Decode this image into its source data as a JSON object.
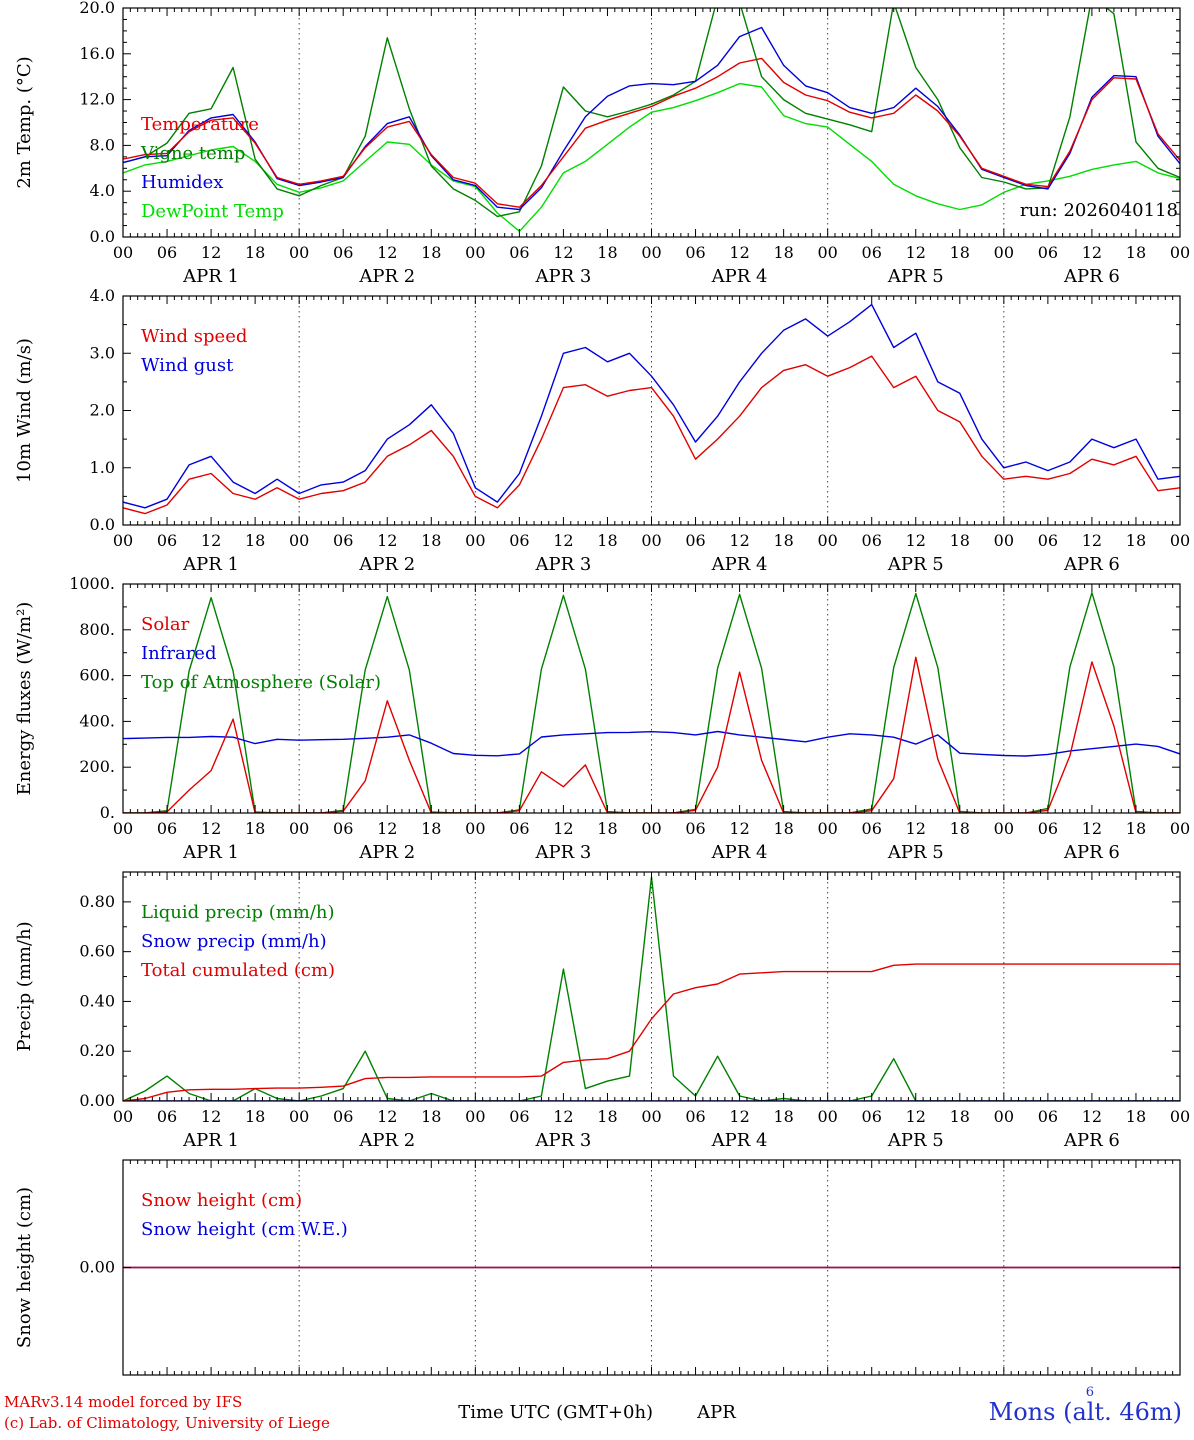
{
  "run_label": "run: 2026040118",
  "footer": {
    "credit_line1": "MARv3.14 model forced by IFS",
    "credit_line2": "(c) Lab. of Climatology, University of Liege",
    "credit_color": "#e00000",
    "xaxis_title": "Time UTC (GMT+0h)",
    "month_label": "APR",
    "station_label": "Mons (alt. 46m)",
    "station_superscript": "6",
    "station_color": "#2233cc"
  },
  "time_axis": {
    "hours_start": 0,
    "hours_end": 144,
    "step_hours": 3,
    "major_tick_every_hours": 6,
    "tick_labels": [
      "00",
      "06",
      "12",
      "18"
    ],
    "day_labels": [
      "APR  1",
      "APR  2",
      "APR  3",
      "APR  4",
      "APR  5",
      "APR  6"
    ],
    "day_boundaries_hours": [
      24,
      48,
      72,
      96,
      120
    ]
  },
  "chart_data": [
    {
      "type": "line",
      "ylabel": "2m Temp. (°C)",
      "ylim": [
        0,
        20
      ],
      "yticks": [
        0,
        4,
        8,
        12,
        16,
        20
      ],
      "ytick_labels": [
        "0.0",
        "4.0",
        "8.0",
        "12.0",
        "16.0",
        "20.0"
      ],
      "yminor": 1,
      "draw_order": [
        3,
        1,
        2,
        0
      ],
      "series": [
        {
          "name": "Temperature",
          "color": "#e00000",
          "values": [
            6.8,
            7.2,
            7.3,
            9.2,
            10.2,
            10.4,
            8.2,
            5.2,
            4.6,
            4.9,
            5.3,
            7.8,
            9.6,
            10.1,
            7.2,
            5.2,
            4.7,
            2.9,
            2.6,
            4.5,
            7.0,
            9.5,
            10.2,
            10.8,
            11.4,
            12.3,
            13.0,
            14.0,
            15.2,
            15.6,
            13.5,
            12.4,
            11.9,
            10.9,
            10.4,
            10.8,
            12.4,
            11.0,
            8.8,
            6.0,
            5.3,
            4.6,
            4.4,
            7.5,
            12.0,
            13.9,
            13.8,
            9.0,
            6.7
          ]
        },
        {
          "name": "Vigne temp",
          "color": "#008000",
          "values": [
            6.5,
            7.0,
            8.2,
            10.8,
            11.2,
            14.8,
            6.8,
            4.2,
            3.6,
            4.5,
            5.2,
            8.8,
            17.4,
            11.2,
            6.2,
            4.2,
            3.2,
            1.8,
            2.2,
            6.2,
            13.1,
            11.0,
            10.5,
            11.0,
            11.6,
            12.4,
            13.6,
            20.9,
            20.5,
            14.0,
            12.0,
            10.8,
            10.3,
            9.8,
            9.2,
            20.5,
            14.8,
            12.0,
            7.8,
            5.2,
            4.8,
            4.2,
            4.3,
            10.5,
            21.0,
            19.5,
            8.3,
            6.0,
            5.2
          ]
        },
        {
          "name": "Humidex",
          "color": "#0000dd",
          "values": [
            6.5,
            7.0,
            7.1,
            9.3,
            10.4,
            10.7,
            8.3,
            5.1,
            4.5,
            4.8,
            5.2,
            7.9,
            9.9,
            10.5,
            7.1,
            5.0,
            4.5,
            2.6,
            2.4,
            4.3,
            7.5,
            10.5,
            12.3,
            13.2,
            13.4,
            13.3,
            13.6,
            15.0,
            17.5,
            18.3,
            15.0,
            13.2,
            12.6,
            11.3,
            10.8,
            11.3,
            13.0,
            11.4,
            8.9,
            5.9,
            5.2,
            4.5,
            4.2,
            7.3,
            12.2,
            14.1,
            14.0,
            8.8,
            6.4
          ]
        },
        {
          "name": "DewPoint Temp",
          "color": "#00dd00",
          "values": [
            5.6,
            6.3,
            6.6,
            7.1,
            7.6,
            7.9,
            6.6,
            4.6,
            3.9,
            4.3,
            4.9,
            6.6,
            8.3,
            8.1,
            6.3,
            4.9,
            4.4,
            2.1,
            0.5,
            2.6,
            5.6,
            6.6,
            8.1,
            9.6,
            10.9,
            11.3,
            11.9,
            12.6,
            13.4,
            13.1,
            10.6,
            9.9,
            9.6,
            8.1,
            6.6,
            4.6,
            3.6,
            2.9,
            2.4,
            2.8,
            3.9,
            4.6,
            4.9,
            5.3,
            5.9,
            6.3,
            6.6,
            5.6,
            5.1
          ]
        }
      ]
    },
    {
      "type": "line",
      "ylabel": "10m Wind (m/s)",
      "ylim": [
        0,
        4
      ],
      "yticks": [
        0,
        1,
        2,
        3,
        4
      ],
      "ytick_labels": [
        "0.0",
        "1.0",
        "2.0",
        "3.0",
        "4.0"
      ],
      "yminor": 0.5,
      "draw_order": [
        1,
        0
      ],
      "series": [
        {
          "name": "Wind speed",
          "color": "#e00000",
          "values": [
            0.3,
            0.2,
            0.35,
            0.8,
            0.9,
            0.55,
            0.45,
            0.65,
            0.45,
            0.55,
            0.6,
            0.75,
            1.2,
            1.4,
            1.65,
            1.2,
            0.5,
            0.3,
            0.7,
            1.5,
            2.4,
            2.45,
            2.25,
            2.35,
            2.4,
            1.9,
            1.15,
            1.5,
            1.9,
            2.4,
            2.7,
            2.8,
            2.6,
            2.75,
            2.95,
            2.4,
            2.6,
            2.0,
            1.8,
            1.2,
            0.8,
            0.85,
            0.8,
            0.9,
            1.15,
            1.05,
            1.2,
            0.6,
            0.65
          ]
        },
        {
          "name": "Wind gust",
          "color": "#0000dd",
          "values": [
            0.4,
            0.3,
            0.45,
            1.05,
            1.2,
            0.75,
            0.55,
            0.8,
            0.55,
            0.7,
            0.75,
            0.95,
            1.5,
            1.75,
            2.1,
            1.6,
            0.65,
            0.4,
            0.9,
            1.9,
            3.0,
            3.1,
            2.85,
            3.0,
            2.6,
            2.1,
            1.45,
            1.9,
            2.5,
            3.0,
            3.4,
            3.6,
            3.3,
            3.55,
            3.85,
            3.1,
            3.35,
            2.5,
            2.3,
            1.5,
            1.0,
            1.1,
            0.95,
            1.1,
            1.5,
            1.35,
            1.5,
            0.8,
            0.85
          ]
        }
      ]
    },
    {
      "type": "line",
      "ylabel": "Energy fluxes (W/m²)",
      "ylim": [
        0,
        1000
      ],
      "yticks": [
        0,
        200,
        400,
        600,
        800,
        1000
      ],
      "ytick_labels": [
        "0.",
        "200.",
        "400.",
        "600.",
        "800.",
        "1000."
      ],
      "yminor": 100,
      "draw_order": [
        2,
        1,
        0
      ],
      "series": [
        {
          "name": "Solar",
          "color": "#e00000",
          "values": [
            0,
            0,
            5,
            100,
            185,
            410,
            0,
            0,
            0,
            0,
            8,
            140,
            490,
            230,
            0,
            0,
            0,
            0,
            10,
            180,
            115,
            210,
            0,
            0,
            0,
            0,
            12,
            200,
            615,
            230,
            0,
            0,
            0,
            0,
            10,
            150,
            680,
            235,
            0,
            0,
            0,
            0,
            12,
            250,
            660,
            380,
            0,
            0,
            0
          ]
        },
        {
          "name": "Infrared",
          "color": "#0000dd",
          "values": [
            325,
            327,
            330,
            330,
            334,
            331,
            303,
            322,
            318,
            320,
            322,
            326,
            331,
            341,
            305,
            260,
            252,
            250,
            258,
            332,
            341,
            346,
            351,
            352,
            355,
            351,
            341,
            356,
            341,
            331,
            321,
            311,
            331,
            346,
            341,
            331,
            301,
            341,
            261,
            256,
            251,
            249,
            256,
            271,
            281,
            291,
            301,
            291,
            258
          ]
        },
        {
          "name": "Top of Atmosphere (Solar)",
          "color": "#008000",
          "values": [
            0,
            0,
            10,
            620,
            940,
            620,
            5,
            0,
            0,
            0,
            12,
            625,
            945,
            625,
            5,
            0,
            0,
            0,
            14,
            628,
            950,
            628,
            6,
            0,
            0,
            0,
            16,
            632,
            955,
            632,
            6,
            0,
            0,
            0,
            18,
            635,
            958,
            635,
            7,
            0,
            0,
            0,
            20,
            638,
            962,
            638,
            7,
            0,
            0
          ]
        }
      ]
    },
    {
      "type": "line",
      "ylabel": "Precip (mm/h)",
      "ylim": [
        0,
        0.92
      ],
      "yticks": [
        0,
        0.2,
        0.4,
        0.6,
        0.8
      ],
      "ytick_labels": [
        "0.00",
        "0.20",
        "0.40",
        "0.60",
        "0.80"
      ],
      "yminor": 0.1,
      "draw_order": [
        0,
        1,
        2
      ],
      "series": [
        {
          "name": "Liquid precip (mm/h)",
          "color": "#008000",
          "values": [
            0,
            0.04,
            0.1,
            0.03,
            0,
            0,
            0.05,
            0.01,
            0,
            0.02,
            0.05,
            0.2,
            0.01,
            0,
            0.03,
            0,
            0,
            0,
            0,
            0.02,
            0.53,
            0.05,
            0.08,
            0.1,
            0.9,
            0.1,
            0.02,
            0.18,
            0.02,
            0,
            0.01,
            0,
            0,
            0,
            0.02,
            0.17,
            0,
            0,
            0,
            0,
            0,
            0,
            0,
            0,
            0,
            0,
            0,
            0,
            0
          ]
        },
        {
          "name": "Snow precip (mm/h)",
          "color": "#0000dd",
          "values": [
            0,
            0,
            0,
            0,
            0,
            0,
            0,
            0,
            0,
            0,
            0,
            0,
            0,
            0,
            0,
            0,
            0,
            0,
            0,
            0,
            0,
            0,
            0,
            0,
            0,
            0,
            0,
            0,
            0,
            0,
            0,
            0,
            0,
            0,
            0,
            0,
            0,
            0,
            0,
            0,
            0,
            0,
            0,
            0,
            0,
            0,
            0,
            0,
            0
          ]
        },
        {
          "name": "Total cumulated (cm)",
          "color": "#e00000",
          "values": [
            0,
            0.01,
            0.035,
            0.045,
            0.047,
            0.047,
            0.05,
            0.052,
            0.052,
            0.055,
            0.06,
            0.09,
            0.095,
            0.095,
            0.097,
            0.097,
            0.097,
            0.097,
            0.097,
            0.1,
            0.155,
            0.165,
            0.17,
            0.2,
            0.33,
            0.43,
            0.455,
            0.47,
            0.51,
            0.515,
            0.52,
            0.52,
            0.52,
            0.52,
            0.52,
            0.545,
            0.55,
            0.55,
            0.55,
            0.55,
            0.55,
            0.55,
            0.55,
            0.55,
            0.55,
            0.55,
            0.55,
            0.55,
            0.55
          ]
        }
      ]
    },
    {
      "type": "line",
      "ylabel": "Snow height (cm)",
      "ylim": [
        -1,
        1
      ],
      "yticks": [
        0
      ],
      "ytick_labels": [
        "0.00"
      ],
      "yminor": null,
      "draw_order": [
        1,
        0
      ],
      "series": [
        {
          "name": "Snow height (cm)",
          "color": "#e00000",
          "values": [
            0,
            0,
            0,
            0,
            0,
            0,
            0,
            0,
            0,
            0,
            0,
            0,
            0,
            0,
            0,
            0,
            0,
            0,
            0,
            0,
            0,
            0,
            0,
            0,
            0,
            0,
            0,
            0,
            0,
            0,
            0,
            0,
            0,
            0,
            0,
            0,
            0,
            0,
            0,
            0,
            0,
            0,
            0,
            0,
            0,
            0,
            0,
            0,
            0
          ]
        },
        {
          "name": "Snow height (cm W.E.)",
          "color": "#0000dd",
          "values": [
            0,
            0,
            0,
            0,
            0,
            0,
            0,
            0,
            0,
            0,
            0,
            0,
            0,
            0,
            0,
            0,
            0,
            0,
            0,
            0,
            0,
            0,
            0,
            0,
            0,
            0,
            0,
            0,
            0,
            0,
            0,
            0,
            0,
            0,
            0,
            0,
            0,
            0,
            0,
            0,
            0,
            0,
            0,
            0,
            0,
            0,
            0,
            0,
            0
          ]
        }
      ]
    }
  ]
}
